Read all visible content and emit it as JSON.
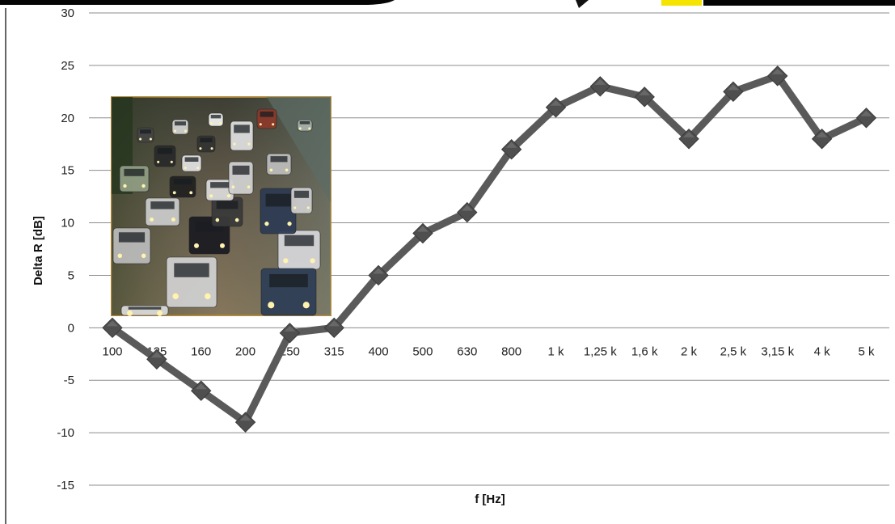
{
  "chart_data": {
    "type": "line",
    "title": "",
    "xlabel": "f [Hz]",
    "ylabel": "Delta R [dB]",
    "categories": [
      "100",
      "125",
      "160",
      "200",
      "250",
      "315",
      "400",
      "500",
      "630",
      "800",
      "1 k",
      "1,25 k",
      "1,6 k",
      "2 k",
      "2,5 k",
      "3,15 k",
      "4 k",
      "5 k"
    ],
    "series": [
      {
        "values": [
          0,
          -3,
          -6,
          -9,
          -0.5,
          0,
          5,
          9,
          11,
          17,
          21,
          23,
          22,
          18,
          22.5,
          24,
          18,
          20
        ]
      }
    ],
    "ylim": [
      -15,
      30
    ],
    "yticks": [
      30,
      25,
      20,
      15,
      10,
      5,
      0,
      -5,
      -10,
      -15
    ],
    "grid": "horizontal",
    "legend": "none",
    "colors": {
      "line": "#5a5a5a",
      "marker": "#4f4f4f",
      "grid": "#8c8c8c",
      "banner": "#050505",
      "highlight": "#f5e400"
    }
  },
  "decorations": {
    "inset_photo": "traffic-jam-photo"
  }
}
